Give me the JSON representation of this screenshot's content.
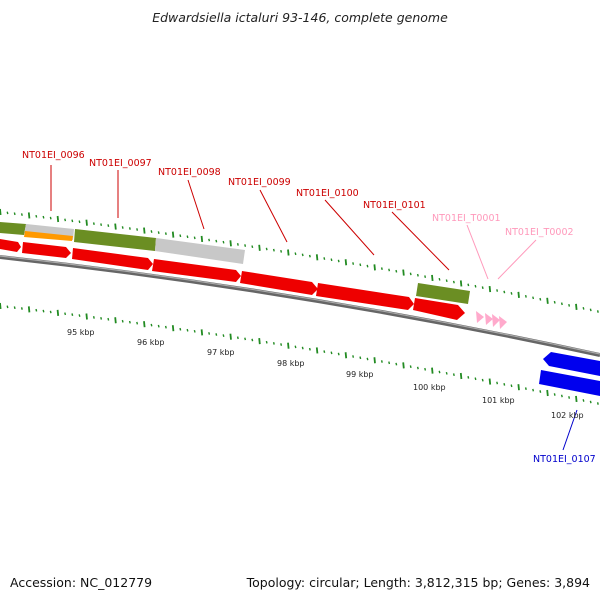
{
  "title": "Edwardsiella ictaluri 93-146, complete genome",
  "footer": {
    "accession": "Accession: NC_012779",
    "topology": "Topology: circular; Length: 3,812,315 bp; Genes: 3,894"
  },
  "colors": {
    "cds": "#ff0000",
    "rRNA_or_feature_green": "#6b8e23",
    "gray_feature": "#c0c0c0",
    "orange_feature": "#ff9900",
    "tRNA": "#ffaacc",
    "reverse_cds": "#0000ee",
    "label_forward": "#cc0000",
    "label_trna": "#ff99bb",
    "label_reverse": "#0000cc",
    "tick_green": "#228b22"
  },
  "scale_labels": [
    "95 kbp",
    "96 kbp",
    "97 kbp",
    "98 kbp",
    "99 kbp",
    "100 kbp",
    "101 kbp",
    "102 kbp"
  ],
  "gene_labels": [
    {
      "id": "NT01EI_0096",
      "kind": "forward"
    },
    {
      "id": "NT01EI_0097",
      "kind": "forward"
    },
    {
      "id": "NT01EI_0098",
      "kind": "forward"
    },
    {
      "id": "NT01EI_0099",
      "kind": "forward"
    },
    {
      "id": "NT01EI_0100",
      "kind": "forward"
    },
    {
      "id": "NT01EI_0101",
      "kind": "forward"
    },
    {
      "id": "NT01EI_T0001",
      "kind": "trna"
    },
    {
      "id": "NT01EI_T0002",
      "kind": "trna"
    },
    {
      "id": "NT01EI_0107",
      "kind": "reverse"
    }
  ]
}
